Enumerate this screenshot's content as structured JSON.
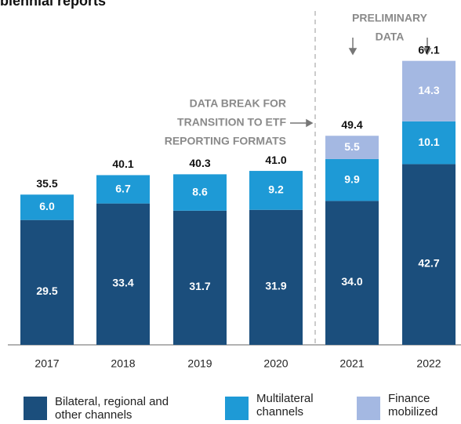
{
  "chart_data": {
    "type": "stacked_bar",
    "title": "biennial reports",
    "categories": [
      "2017",
      "2018",
      "2019",
      "2020",
      "2021",
      "2022"
    ],
    "series": [
      {
        "name": "Bilateral, regional and other channels",
        "color": "#1b4e7c",
        "values": [
          29.5,
          33.4,
          31.7,
          31.9,
          34.0,
          42.7
        ],
        "value_labels": [
          "29.5",
          "33.4",
          "31.7",
          "31.9",
          "34.0",
          "42.7"
        ]
      },
      {
        "name": "Multilateral channels",
        "color": "#1e9ad6",
        "values": [
          6.0,
          6.7,
          8.6,
          9.2,
          9.9,
          10.1
        ],
        "value_labels": [
          "6.0",
          "6.7",
          "8.6",
          "9.2",
          "9.9",
          "10.1"
        ]
      },
      {
        "name": "Finance mobilized",
        "color": "#a4b8e2",
        "values": [
          null,
          null,
          null,
          null,
          5.5,
          14.3
        ],
        "value_labels": [
          null,
          null,
          null,
          null,
          "5.5",
          "14.3"
        ]
      }
    ],
    "totals": [
      35.5,
      40.1,
      40.3,
      41.0,
      49.4,
      67.1
    ],
    "total_labels": [
      "35.5",
      "40.1",
      "40.3",
      "41.0",
      "49.4",
      "67.1"
    ],
    "annotations": [
      {
        "lines": [
          "DATA BREAK FOR",
          "TRANSITION TO ETF",
          "REPORTING FORMATS"
        ]
      },
      {
        "lines": [
          "PRELIMINARY",
          "DATA"
        ]
      }
    ],
    "ylim": [
      0,
      70
    ]
  }
}
